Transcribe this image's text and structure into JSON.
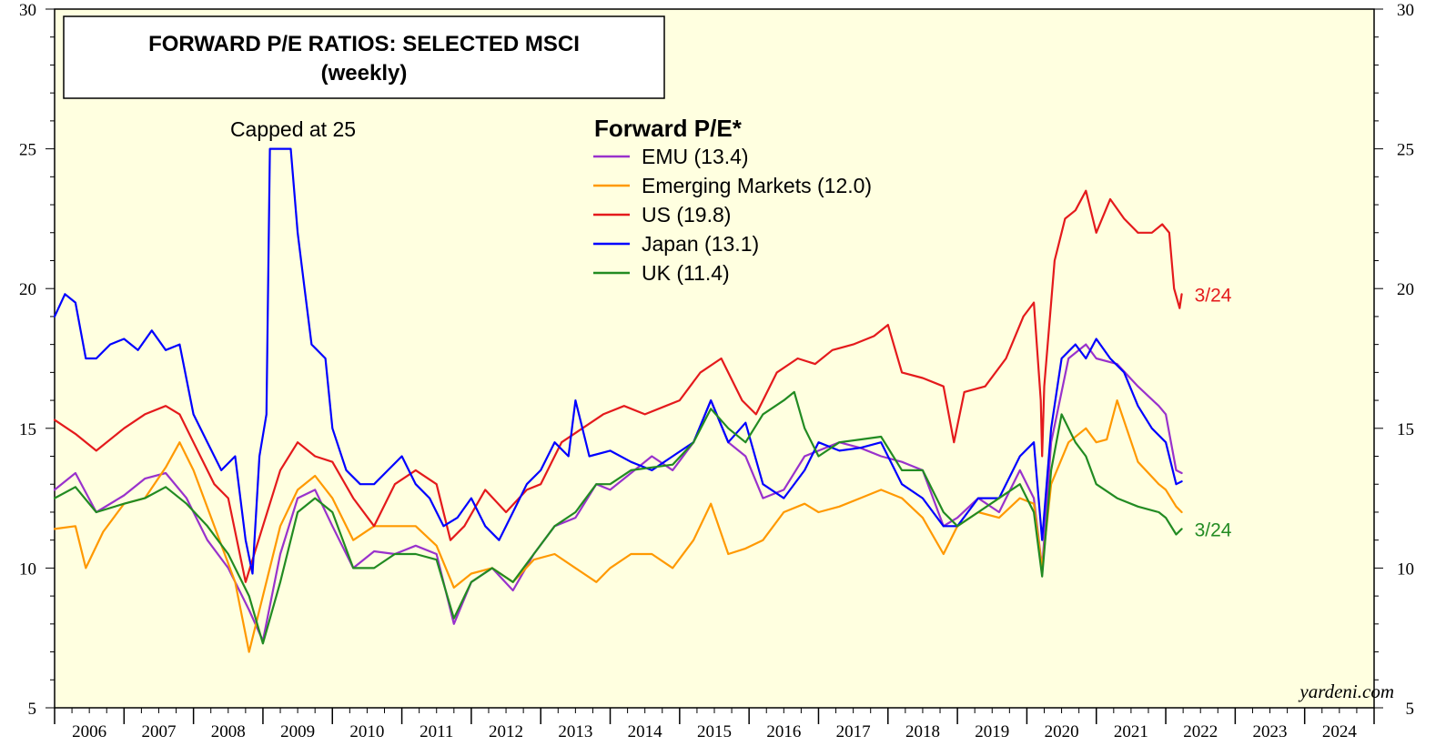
{
  "chart_data": {
    "type": "line",
    "title": "FORWARD P/E RATIOS: SELECTED MSCI",
    "subtitle": "(weekly)",
    "legend_title": "Forward P/E*",
    "legend_position": "top-center",
    "annotation": "Capped at 25",
    "source": "yardeni.com",
    "ylim": [
      5,
      30
    ],
    "y_ticks": [
      5,
      10,
      15,
      20,
      25,
      30
    ],
    "x_year_labels": [
      "2006",
      "2007",
      "2008",
      "2009",
      "2010",
      "2011",
      "2012",
      "2013",
      "2014",
      "2015",
      "2016",
      "2017",
      "2018",
      "2019",
      "2020",
      "2021",
      "2022",
      "2023",
      "2024"
    ],
    "xlim": [
      2006.0,
      2025.0
    ],
    "grid": false,
    "background": "#FFFFE0",
    "end_labels": [
      {
        "text": "3/24",
        "series": "US",
        "color": "#E41A1C"
      },
      {
        "text": "3/24",
        "series": "UK",
        "color": "#228B22"
      }
    ],
    "series": [
      {
        "name": "EMU (13.4)",
        "key": "EMU",
        "color": "#9932CC",
        "x": [
          2006.0,
          2006.3,
          2006.6,
          2007.0,
          2007.3,
          2007.6,
          2007.9,
          2008.2,
          2008.5,
          2008.8,
          2009.0,
          2009.25,
          2009.5,
          2009.75,
          2010.0,
          2010.3,
          2010.6,
          2010.9,
          2011.2,
          2011.5,
          2011.75,
          2012.0,
          2012.3,
          2012.6,
          2012.9,
          2013.2,
          2013.5,
          2013.8,
          2014.0,
          2014.3,
          2014.6,
          2014.9,
          2015.2,
          2015.45,
          2015.7,
          2015.95,
          2016.2,
          2016.5,
          2016.8,
          2017.0,
          2017.3,
          2017.6,
          2017.9,
          2018.2,
          2018.5,
          2018.8,
          2019.0,
          2019.3,
          2019.6,
          2019.9,
          2020.1,
          2020.22,
          2020.35,
          2020.6,
          2020.85,
          2021.0,
          2021.3,
          2021.6,
          2021.9,
          2022.0,
          2022.15,
          2022.23
        ],
        "y": [
          12.8,
          13.4,
          12.0,
          12.6,
          13.2,
          13.4,
          12.5,
          11.0,
          10.0,
          8.5,
          7.4,
          10.5,
          12.5,
          12.8,
          11.5,
          10.0,
          10.6,
          10.5,
          10.8,
          10.5,
          8.0,
          9.5,
          10.0,
          9.2,
          10.5,
          11.5,
          11.8,
          13.0,
          12.8,
          13.4,
          14.0,
          13.5,
          14.5,
          16.0,
          14.5,
          14.0,
          12.5,
          12.8,
          14.0,
          14.2,
          14.5,
          14.3,
          14.0,
          13.8,
          13.5,
          11.5,
          11.8,
          12.5,
          12.0,
          13.5,
          12.5,
          10.0,
          14.5,
          17.5,
          18.0,
          17.5,
          17.3,
          16.5,
          15.8,
          15.5,
          13.5,
          13.4
        ]
      },
      {
        "name": "Emerging Markets (12.0)",
        "key": "Emerging Markets",
        "color": "#FF9900",
        "x": [
          2006.0,
          2006.3,
          2006.45,
          2006.7,
          2007.0,
          2007.3,
          2007.6,
          2007.8,
          2008.0,
          2008.3,
          2008.6,
          2008.8,
          2009.0,
          2009.25,
          2009.5,
          2009.75,
          2010.0,
          2010.3,
          2010.6,
          2010.9,
          2011.2,
          2011.5,
          2011.75,
          2012.0,
          2012.3,
          2012.6,
          2012.9,
          2013.2,
          2013.5,
          2013.8,
          2014.0,
          2014.3,
          2014.6,
          2014.9,
          2015.2,
          2015.45,
          2015.7,
          2015.95,
          2016.2,
          2016.5,
          2016.8,
          2017.0,
          2017.3,
          2017.6,
          2017.9,
          2018.2,
          2018.5,
          2018.8,
          2019.0,
          2019.3,
          2019.6,
          2019.9,
          2020.1,
          2020.22,
          2020.35,
          2020.6,
          2020.85,
          2021.0,
          2021.15,
          2021.3,
          2021.6,
          2021.9,
          2022.0,
          2022.15,
          2022.23
        ],
        "y": [
          11.4,
          11.5,
          10.0,
          11.3,
          12.3,
          12.5,
          13.6,
          14.5,
          13.5,
          11.5,
          9.5,
          7.0,
          9.0,
          11.5,
          12.8,
          13.3,
          12.5,
          11.0,
          11.5,
          11.5,
          11.5,
          10.8,
          9.3,
          9.8,
          10.0,
          9.5,
          10.3,
          10.5,
          10.0,
          9.5,
          10.0,
          10.5,
          10.5,
          10.0,
          11.0,
          12.3,
          10.5,
          10.7,
          11.0,
          12.0,
          12.3,
          12.0,
          12.2,
          12.5,
          12.8,
          12.5,
          11.8,
          10.5,
          11.5,
          12.0,
          11.8,
          12.5,
          12.3,
          10.0,
          13.0,
          14.5,
          15.0,
          14.5,
          14.6,
          16.0,
          13.8,
          13.0,
          12.8,
          12.2,
          12.0
        ]
      },
      {
        "name": "US (19.8)",
        "key": "US",
        "color": "#E41A1C",
        "x": [
          2006.0,
          2006.3,
          2006.6,
          2007.0,
          2007.3,
          2007.6,
          2007.8,
          2008.0,
          2008.3,
          2008.5,
          2008.75,
          2009.0,
          2009.25,
          2009.5,
          2009.75,
          2010.0,
          2010.3,
          2010.6,
          2010.9,
          2011.2,
          2011.5,
          2011.7,
          2011.9,
          2012.2,
          2012.5,
          2012.8,
          2013.0,
          2013.3,
          2013.6,
          2013.9,
          2014.2,
          2014.5,
          2014.8,
          2015.0,
          2015.3,
          2015.6,
          2015.9,
          2016.1,
          2016.4,
          2016.7,
          2016.95,
          2017.2,
          2017.5,
          2017.8,
          2018.0,
          2018.2,
          2018.5,
          2018.8,
          2018.95,
          2019.1,
          2019.4,
          2019.7,
          2019.95,
          2020.1,
          2020.2,
          2020.22,
          2020.25,
          2020.4,
          2020.55,
          2020.7,
          2020.85,
          2021.0,
          2021.2,
          2021.4,
          2021.6,
          2021.8,
          2021.95,
          2022.05,
          2022.12,
          2022.2,
          2022.23
        ],
        "y": [
          15.3,
          14.8,
          14.2,
          15.0,
          15.5,
          15.8,
          15.5,
          14.5,
          13.0,
          12.5,
          9.5,
          11.5,
          13.5,
          14.5,
          14.0,
          13.8,
          12.5,
          11.5,
          13.0,
          13.5,
          13.0,
          11.0,
          11.5,
          12.8,
          12.0,
          12.8,
          13.0,
          14.5,
          15.0,
          15.5,
          15.8,
          15.5,
          15.8,
          16.0,
          17.0,
          17.5,
          16.0,
          15.5,
          17.0,
          17.5,
          17.3,
          17.8,
          18.0,
          18.3,
          18.7,
          17.0,
          16.8,
          16.5,
          14.5,
          16.3,
          16.5,
          17.5,
          19.0,
          19.5,
          16.0,
          14.0,
          16.5,
          21.0,
          22.5,
          22.8,
          23.5,
          22.0,
          23.2,
          22.5,
          22.0,
          22.0,
          22.3,
          22.0,
          20.0,
          19.3,
          19.8
        ]
      },
      {
        "name": "Japan (13.1)",
        "key": "Japan",
        "color": "#0000FF",
        "x": [
          2006.0,
          2006.15,
          2006.3,
          2006.45,
          2006.6,
          2006.8,
          2007.0,
          2007.2,
          2007.4,
          2007.6,
          2007.8,
          2008.0,
          2008.2,
          2008.4,
          2008.6,
          2008.75,
          2008.85,
          2008.95,
          2009.05,
          2009.1,
          2009.4,
          2009.5,
          2009.6,
          2009.7,
          2009.9,
          2010.0,
          2010.2,
          2010.4,
          2010.6,
          2010.8,
          2011.0,
          2011.2,
          2011.4,
          2011.6,
          2011.8,
          2012.0,
          2012.2,
          2012.4,
          2012.6,
          2012.8,
          2013.0,
          2013.2,
          2013.4,
          2013.5,
          2013.7,
          2014.0,
          2014.3,
          2014.6,
          2014.9,
          2015.2,
          2015.45,
          2015.7,
          2015.95,
          2016.2,
          2016.5,
          2016.8,
          2017.0,
          2017.3,
          2017.6,
          2017.9,
          2018.2,
          2018.5,
          2018.8,
          2019.0,
          2019.3,
          2019.6,
          2019.9,
          2020.1,
          2020.22,
          2020.35,
          2020.5,
          2020.7,
          2020.85,
          2021.0,
          2021.2,
          2021.4,
          2021.6,
          2021.8,
          2022.0,
          2022.15,
          2022.23
        ],
        "y": [
          19.0,
          19.8,
          19.5,
          17.5,
          17.5,
          18.0,
          18.2,
          17.8,
          18.5,
          17.8,
          18.0,
          15.5,
          14.5,
          13.5,
          14.0,
          11.0,
          9.8,
          14.0,
          15.5,
          25.0,
          25.0,
          22.0,
          20.0,
          18.0,
          17.5,
          15.0,
          13.5,
          13.0,
          13.0,
          13.5,
          14.0,
          13.0,
          12.5,
          11.5,
          11.8,
          12.5,
          11.5,
          11.0,
          12.0,
          13.0,
          13.5,
          14.5,
          14.0,
          16.0,
          14.0,
          14.2,
          13.8,
          13.5,
          14.0,
          14.5,
          16.0,
          14.5,
          15.2,
          13.0,
          12.5,
          13.5,
          14.5,
          14.2,
          14.3,
          14.5,
          13.0,
          12.5,
          11.5,
          11.5,
          12.5,
          12.5,
          14.0,
          14.5,
          11.0,
          15.0,
          17.5,
          18.0,
          17.5,
          18.2,
          17.5,
          17.0,
          15.8,
          15.0,
          14.5,
          13.0,
          13.1
        ]
      },
      {
        "name": "UK (11.4)",
        "key": "UK",
        "color": "#228B22",
        "x": [
          2006.0,
          2006.3,
          2006.6,
          2007.0,
          2007.3,
          2007.6,
          2007.9,
          2008.2,
          2008.5,
          2008.8,
          2009.0,
          2009.25,
          2009.5,
          2009.75,
          2010.0,
          2010.3,
          2010.6,
          2010.9,
          2011.2,
          2011.5,
          2011.75,
          2012.0,
          2012.3,
          2012.6,
          2012.9,
          2013.2,
          2013.5,
          2013.8,
          2014.0,
          2014.3,
          2014.6,
          2014.9,
          2015.2,
          2015.45,
          2015.7,
          2015.95,
          2016.2,
          2016.5,
          2016.65,
          2016.8,
          2017.0,
          2017.3,
          2017.6,
          2017.9,
          2018.2,
          2018.5,
          2018.8,
          2019.0,
          2019.3,
          2019.6,
          2019.9,
          2020.1,
          2020.22,
          2020.35,
          2020.5,
          2020.7,
          2020.85,
          2021.0,
          2021.3,
          2021.6,
          2021.9,
          2022.0,
          2022.15,
          2022.23
        ],
        "y": [
          12.5,
          12.9,
          12.0,
          12.3,
          12.5,
          12.9,
          12.3,
          11.5,
          10.5,
          9.0,
          7.3,
          9.5,
          12.0,
          12.5,
          12.0,
          10.0,
          10.0,
          10.5,
          10.5,
          10.3,
          8.2,
          9.5,
          10.0,
          9.5,
          10.5,
          11.5,
          12.0,
          13.0,
          13.0,
          13.5,
          13.6,
          13.7,
          14.5,
          15.7,
          15.0,
          14.5,
          15.5,
          16.0,
          16.3,
          15.0,
          14.0,
          14.5,
          14.6,
          14.7,
          13.5,
          13.5,
          12.0,
          11.5,
          12.0,
          12.5,
          13.0,
          12.0,
          9.7,
          13.5,
          15.5,
          14.5,
          14.0,
          13.0,
          12.5,
          12.2,
          12.0,
          11.8,
          11.2,
          11.4
        ]
      }
    ]
  }
}
